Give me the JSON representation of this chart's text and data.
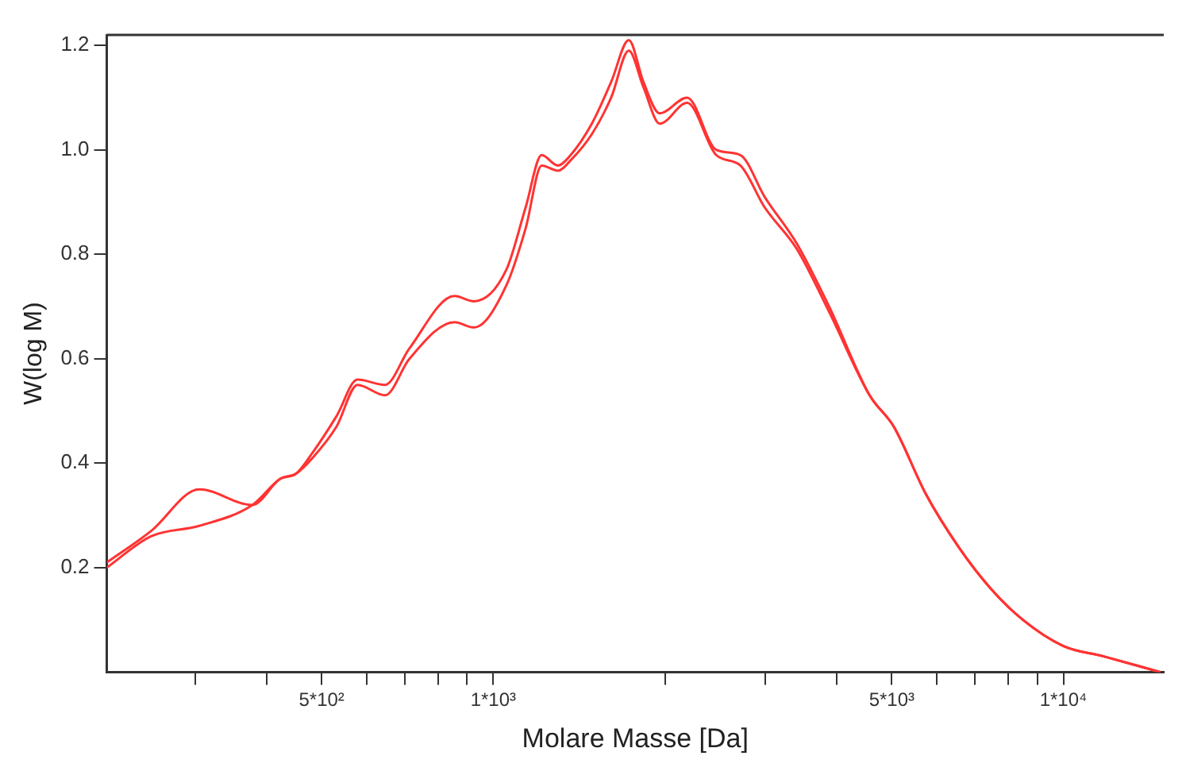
{
  "chart_data": {
    "type": "line",
    "xlabel": "Molare Masse [Da]",
    "ylabel": "W(log M)",
    "log": "x",
    "grid": false,
    "marker": "none",
    "line_style": "solid",
    "x": [
      210,
      251,
      305,
      378,
      423,
      451,
      482,
      531,
      578,
      646,
      713,
      855,
      925,
      1054,
      1140,
      1216,
      1298,
      1367,
      1489,
      1610,
      1729,
      1834,
      1959,
      2188,
      2461,
      2713,
      2992,
      3409,
      3882,
      4572,
      5041,
      5744,
      6546,
      7457,
      8492,
      10000,
      11770,
      14790
    ],
    "series": [
      {
        "color": "#ff3333",
        "values": [
          0.21,
          0.27,
          0.35,
          0.32,
          0.37,
          0.38,
          0.42,
          0.49,
          0.56,
          0.55,
          0.62,
          0.72,
          0.71,
          0.77,
          0.89,
          0.99,
          0.97,
          0.99,
          1.05,
          1.13,
          1.21,
          1.13,
          1.07,
          1.1,
          1.0,
          0.99,
          0.91,
          0.82,
          0.7,
          0.53,
          0.47,
          0.34,
          0.24,
          0.16,
          0.1,
          0.05,
          0.03,
          0.0
        ]
      },
      {
        "color": "#ff3333",
        "values": [
          0.2,
          0.26,
          0.28,
          0.32,
          0.37,
          0.38,
          0.41,
          0.47,
          0.55,
          0.53,
          0.6,
          0.67,
          0.66,
          0.74,
          0.85,
          0.97,
          0.96,
          0.98,
          1.03,
          1.1,
          1.19,
          1.12,
          1.05,
          1.09,
          0.99,
          0.97,
          0.89,
          0.81,
          0.69,
          0.53,
          0.47,
          0.34,
          0.24,
          0.16,
          0.1,
          0.05,
          0.03,
          0.0
        ]
      }
    ],
    "xlim": [
      210,
      15000
    ],
    "xticks": [
      {
        "value": 300,
        "label": null
      },
      {
        "value": 400,
        "label": null
      },
      {
        "value": 500,
        "label": "5*10²"
      },
      {
        "value": 600,
        "label": null
      },
      {
        "value": 700,
        "label": null
      },
      {
        "value": 800,
        "label": null
      },
      {
        "value": 900,
        "label": null
      },
      {
        "value": 1000,
        "label": "1*10³"
      },
      {
        "value": 2000,
        "label": null
      },
      {
        "value": 3000,
        "label": null
      },
      {
        "value": 4000,
        "label": null
      },
      {
        "value": 5000,
        "label": "5*10³"
      },
      {
        "value": 6000,
        "label": null
      },
      {
        "value": 7000,
        "label": null
      },
      {
        "value": 8000,
        "label": null
      },
      {
        "value": 9000,
        "label": null
      },
      {
        "value": 10000,
        "label": "1*10⁴"
      }
    ],
    "ylim": [
      0,
      1.22
    ],
    "yticks": [
      {
        "value": 0.2,
        "label": "0.2"
      },
      {
        "value": 0.4,
        "label": "0.4"
      },
      {
        "value": 0.6,
        "label": "0.6"
      },
      {
        "value": 0.8,
        "label": "0.8"
      },
      {
        "value": 1,
        "label": "1.0"
      },
      {
        "value": 1.2,
        "label": "1.2"
      }
    ]
  }
}
